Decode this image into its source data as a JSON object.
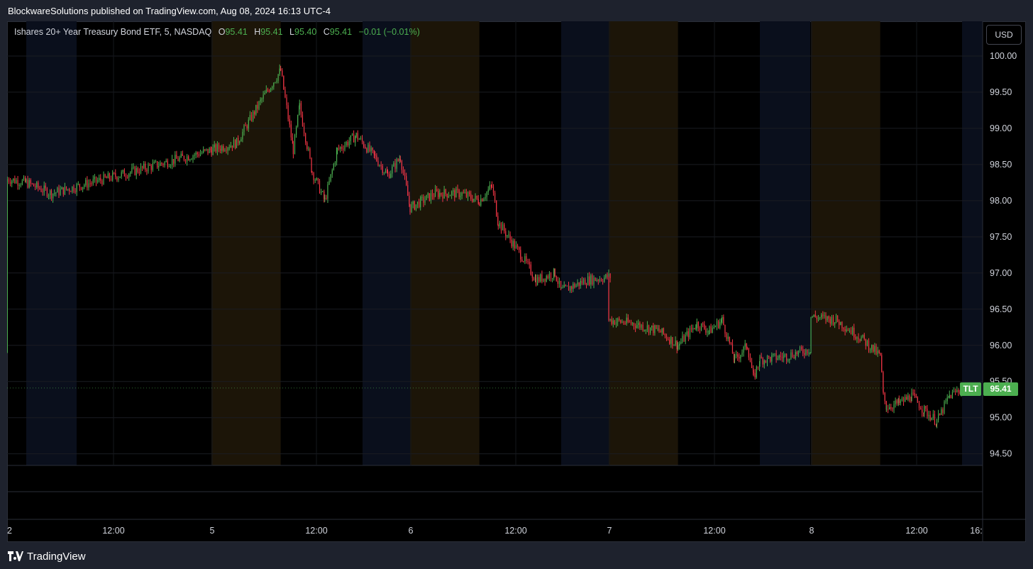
{
  "header": {
    "publisher_line": "BlockwareSolutions published on TradingView.com, Aug 08, 2024 16:13 UTC-4"
  },
  "legend": {
    "name": "Ishares 20+ Year Treasury Bond ETF, 5, NASDAQ",
    "o_label": "O",
    "o_value": "95.41",
    "h_label": "H",
    "h_value": "95.41",
    "l_label": "L",
    "l_value": "95.40",
    "c_label": "C",
    "c_value": "95.41",
    "change": "−0.01 (−0.01%)"
  },
  "currency_button": "USD",
  "last_price": {
    "symbol": "TLT",
    "value": "95.41"
  },
  "footer": {
    "brand": "TradingView"
  },
  "colors": {
    "up": "#4caf50",
    "down": "#f23645",
    "background": "#000000",
    "premarket_band": "#1c1508",
    "afterhours_band": "#0a0f1c"
  },
  "chart_data": {
    "type": "candlestick",
    "symbol": "TLT",
    "interval": "5",
    "ylim": [
      94.34,
      100.48
    ],
    "y_ticks": [
      "100.00",
      "99.50",
      "99.00",
      "98.50",
      "98.00",
      "97.50",
      "97.00",
      "96.50",
      "96.00",
      "95.50",
      "95.00",
      "94.50"
    ],
    "x_ticks": [
      "2",
      "12:00",
      "5",
      "12:00",
      "6",
      "12:00",
      "7",
      "12:00",
      "8",
      "12:00",
      "16:"
    ],
    "price_path": [
      {
        "date": "Aug 2 04:00",
        "price": 95.9
      },
      {
        "date": "Aug 2 08:00",
        "price": 96.2
      },
      {
        "date": "Aug 2 09:30",
        "price": 96.15
      },
      {
        "date": "Aug 2 09:35",
        "price": 97.6
      },
      {
        "date": "Aug 2 10:00",
        "price": 97.0
      },
      {
        "date": "Aug 2 11:00",
        "price": 97.6
      },
      {
        "date": "Aug 2 12:00",
        "price": 97.9
      },
      {
        "date": "Aug 2 13:00",
        "price": 98.1
      },
      {
        "date": "Aug 2 14:30",
        "price": 98.3
      },
      {
        "date": "Aug 2 16:00",
        "price": 98.25
      },
      {
        "date": "Aug 2 18:00",
        "price": 98.1
      },
      {
        "date": "Aug 5 04:00",
        "price": 98.7
      },
      {
        "date": "Aug 5 06:00",
        "price": 98.8
      },
      {
        "date": "Aug 5 08:00",
        "price": 99.4
      },
      {
        "date": "Aug 5 09:30",
        "price": 99.8
      },
      {
        "date": "Aug 5 10:30",
        "price": 98.7
      },
      {
        "date": "Aug 5 11:00",
        "price": 99.3
      },
      {
        "date": "Aug 5 12:00",
        "price": 98.4
      },
      {
        "date": "Aug 5 13:00",
        "price": 98.0
      },
      {
        "date": "Aug 5 14:00",
        "price": 98.7
      },
      {
        "date": "Aug 5 15:30",
        "price": 98.9
      },
      {
        "date": "Aug 5 17:00",
        "price": 98.6
      },
      {
        "date": "Aug 5 18:00",
        "price": 98.35
      },
      {
        "date": "Aug 5 19:00",
        "price": 98.6
      },
      {
        "date": "Aug 6 04:00",
        "price": 97.9
      },
      {
        "date": "Aug 6 06:00",
        "price": 98.1
      },
      {
        "date": "Aug 6 08:00",
        "price": 98.1
      },
      {
        "date": "Aug 6 09:30",
        "price": 98.0
      },
      {
        "date": "Aug 6 10:30",
        "price": 98.2
      },
      {
        "date": "Aug 6 11:00",
        "price": 97.7
      },
      {
        "date": "Aug 6 13:00",
        "price": 97.2
      },
      {
        "date": "Aug 6 14:00",
        "price": 96.9
      },
      {
        "date": "Aug 6 15:30",
        "price": 97.0
      },
      {
        "date": "Aug 6 16:00",
        "price": 96.75
      },
      {
        "date": "Aug 6 18:00",
        "price": 96.9
      },
      {
        "date": "Aug 6 20:00",
        "price": 96.95
      },
      {
        "date": "Aug 7 04:00",
        "price": 96.35
      },
      {
        "date": "Aug 7 06:00",
        "price": 96.3
      },
      {
        "date": "Aug 7 08:00",
        "price": 96.2
      },
      {
        "date": "Aug 7 09:30",
        "price": 96.0
      },
      {
        "date": "Aug 7 11:00",
        "price": 96.3
      },
      {
        "date": "Aug 7 12:00",
        "price": 96.2
      },
      {
        "date": "Aug 7 13:00",
        "price": 96.35
      },
      {
        "date": "Aug 7 14:00",
        "price": 95.8
      },
      {
        "date": "Aug 7 15:00",
        "price": 96.0
      },
      {
        "date": "Aug 7 15:30",
        "price": 95.55
      },
      {
        "date": "Aug 7 16:00",
        "price": 95.8
      },
      {
        "date": "Aug 7 18:00",
        "price": 95.85
      },
      {
        "date": "Aug 7 20:00",
        "price": 95.95
      },
      {
        "date": "Aug 8 04:00",
        "price": 96.4
      },
      {
        "date": "Aug 8 06:00",
        "price": 96.35
      },
      {
        "date": "Aug 8 08:00",
        "price": 96.1
      },
      {
        "date": "Aug 8 09:30",
        "price": 95.85
      },
      {
        "date": "Aug 8 09:45",
        "price": 95.3
      },
      {
        "date": "Aug 8 10:00",
        "price": 95.15
      },
      {
        "date": "Aug 8 11:00",
        "price": 95.2
      },
      {
        "date": "Aug 8 12:00",
        "price": 95.3
      },
      {
        "date": "Aug 8 13:00",
        "price": 95.1
      },
      {
        "date": "Aug 8 14:00",
        "price": 94.95
      },
      {
        "date": "Aug 8 15:00",
        "price": 95.3
      },
      {
        "date": "Aug 8 16:00",
        "price": 95.41
      }
    ]
  }
}
